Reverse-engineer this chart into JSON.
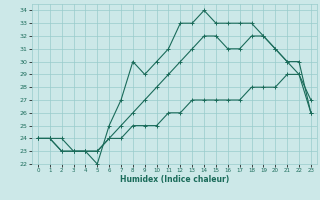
{
  "xlabel": "Humidex (Indice chaleur)",
  "bg_color": "#cce8e8",
  "grid_color": "#99cccc",
  "line_color": "#1a6b5a",
  "xlim": [
    -0.5,
    23.5
  ],
  "ylim": [
    22,
    34.5
  ],
  "xticks": [
    0,
    1,
    2,
    3,
    4,
    5,
    6,
    7,
    8,
    9,
    10,
    11,
    12,
    13,
    14,
    15,
    16,
    17,
    18,
    19,
    20,
    21,
    22,
    23
  ],
  "yticks": [
    22,
    23,
    24,
    25,
    26,
    27,
    28,
    29,
    30,
    31,
    32,
    33,
    34
  ],
  "series1_x": [
    0,
    1,
    2,
    3,
    4,
    5,
    6,
    7,
    8,
    9,
    10,
    11,
    12,
    13,
    14,
    15,
    16,
    17,
    18,
    19,
    20,
    21,
    22,
    23
  ],
  "series1_y": [
    24,
    24,
    24,
    23,
    23,
    22,
    25,
    27,
    30,
    29,
    30,
    31,
    33,
    33,
    34,
    33,
    33,
    33,
    33,
    32,
    31,
    30,
    29,
    27
  ],
  "series2_x": [
    0,
    1,
    2,
    3,
    4,
    5,
    6,
    7,
    8,
    9,
    10,
    11,
    12,
    13,
    14,
    15,
    16,
    17,
    18,
    19,
    20,
    21,
    22,
    23
  ],
  "series2_y": [
    24,
    24,
    23,
    23,
    23,
    23,
    24,
    25,
    26,
    27,
    28,
    29,
    30,
    31,
    32,
    32,
    31,
    31,
    32,
    32,
    31,
    30,
    30,
    26
  ],
  "series3_x": [
    0,
    1,
    2,
    3,
    4,
    5,
    6,
    7,
    8,
    9,
    10,
    11,
    12,
    13,
    14,
    15,
    16,
    17,
    18,
    19,
    20,
    21,
    22,
    23
  ],
  "series3_y": [
    24,
    24,
    23,
    23,
    23,
    23,
    24,
    24,
    25,
    25,
    25,
    26,
    26,
    27,
    27,
    27,
    27,
    27,
    28,
    28,
    28,
    29,
    29,
    26
  ]
}
